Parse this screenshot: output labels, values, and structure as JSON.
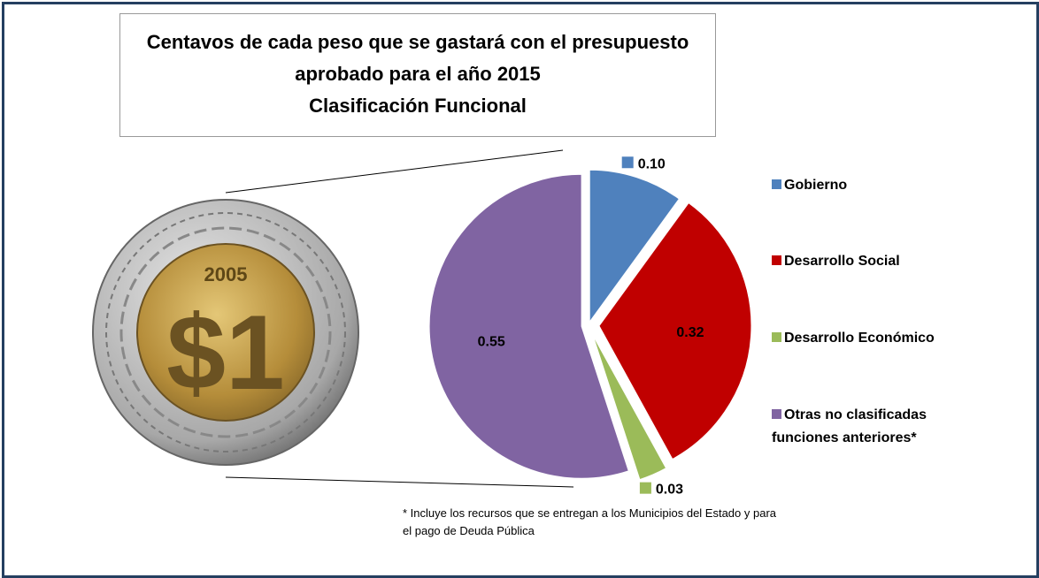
{
  "chart_data": {
    "type": "pie",
    "title": [
      "Centavos de cada peso que se gastará con el presupuesto",
      "aprobado para el año 2015",
      "Clasificación Funcional"
    ],
    "categories": [
      "Gobierno",
      "Desarrollo Social",
      "Desarrollo Económico",
      "Otras no clasificadas funciones anteriores*"
    ],
    "values": [
      0.1,
      0.32,
      0.03,
      0.55
    ],
    "value_labels": [
      "0.10",
      "0.32",
      "0.03",
      "0.55"
    ],
    "colors": [
      "#4f81bd",
      "#c00000",
      "#9bbb59",
      "#8064a2"
    ],
    "legend": "right",
    "footnote": [
      "* Incluye los recursos que se entregan a los Municipios del Estado y para",
      "el pago de Deuda Pública"
    ]
  },
  "coin": {
    "year": "2005",
    "denomination": "$1"
  }
}
